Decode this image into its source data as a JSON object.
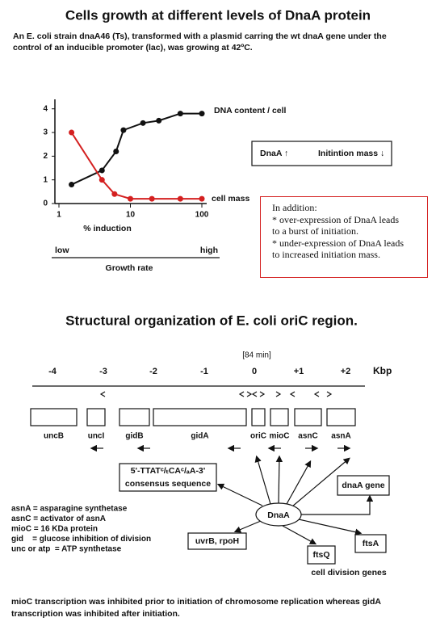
{
  "title": "Cells growth at different levels of DnaA protein",
  "intro": [
    "An E. coli strain dnaA46 (Ts), transformed with a plasmid carring the wt dnaA gene under the",
    "control of an inducible promoter (lac), was growing at 42ºC."
  ],
  "chart_data": {
    "type": "line",
    "xlabel": "% induction",
    "xscale": "log",
    "xlim": [
      1,
      100
    ],
    "xticks": [
      1,
      10,
      100
    ],
    "ylim": [
      0,
      4.4
    ],
    "yticks": [
      0,
      1,
      2,
      3,
      4
    ],
    "series": [
      {
        "name": "DNA content / cell",
        "color": "#111111",
        "x": [
          1.5,
          4,
          6.3,
          8,
          15,
          25,
          50,
          100
        ],
        "values": [
          0.8,
          1.4,
          2.2,
          3.1,
          3.4,
          3.5,
          3.8,
          3.8
        ]
      },
      {
        "name": "cell mass",
        "color": "#d42020",
        "x": [
          1.5,
          4,
          6,
          10,
          20,
          50,
          100
        ],
        "values": [
          3.0,
          1.0,
          0.4,
          0.2,
          0.2,
          0.2,
          0.2
        ]
      }
    ]
  },
  "growth_axis": {
    "low": "low",
    "high": "high",
    "label": "Growth rate"
  },
  "summary_box": {
    "left": "DnaA ↑",
    "right": "Initintion mass ↓"
  },
  "note": [
    "In addition:",
    "* over-expression of DnaA leads",
    "to a burst of initiation.",
    "* under-expression of DnaA leads",
    "to increased initiation mass."
  ],
  "section2": {
    "title": "Structural organization of E. coli oriC region.",
    "map_label": "[84 min]",
    "scale": {
      "labels": [
        "-4",
        "-3",
        "-2",
        "-1",
        "0",
        "+1",
        "+2"
      ],
      "unit": "Kbp"
    },
    "genes": [
      "uncB",
      "uncI",
      "gidB",
      "gidA",
      "oriC",
      "mioC",
      "asnC",
      "asnA"
    ],
    "consensus": [
      "5'-TTATᶜ/ₜCAᶜ/ₐA-3'",
      "consensus sequence"
    ],
    "legend": [
      "asnA = asparagine synthetase",
      "asnC = activator of asnA",
      "mioC = 16 KDa protein",
      "gid    = glucose inhibition of division",
      "unc or atp  = ATP synthetase"
    ],
    "regulator": "DnaA",
    "targets": [
      "dnaA gene",
      "uvrB, rpoH",
      "ftsQ",
      "ftsA"
    ],
    "target_group": "cell division genes",
    "footnote": [
      "mioC transcription was inhibited prior to initiation of chromosome replication whereas gidA",
      "transcription was inhibited after initiation."
    ]
  }
}
